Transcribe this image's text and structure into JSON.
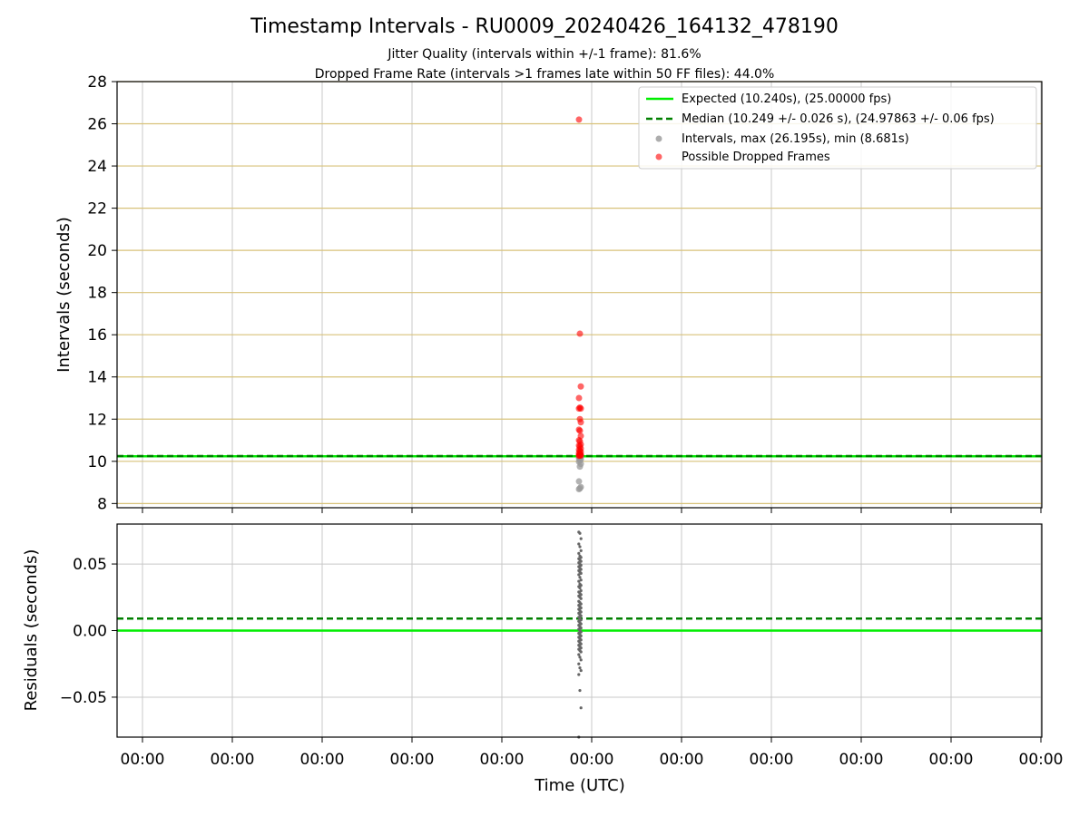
{
  "title": "Timestamp Intervals - RU0009_20240426_164132_478190",
  "subtitle_lines": [
    "Jitter Quality (intervals within +/-1 frame): 81.6%",
    "Dropped Frame Rate (intervals >1 frames late within 50 FF files): 44.0%"
  ],
  "colors": {
    "expected": "#00ee00",
    "median": "#008000",
    "intervals": "#999999",
    "dropped": "#ff0000",
    "residual_points": "#666666",
    "top_hgrid": "#d8c27a",
    "grid": "#c8c8c8"
  },
  "chart_data": [
    {
      "type": "scatter",
      "panel": "intervals",
      "ylabel": "Intervals (seconds)",
      "ylim": [
        7.8,
        28
      ],
      "yticks": [
        "8",
        "10",
        "12",
        "14",
        "16",
        "18",
        "20",
        "22",
        "24",
        "26",
        "28"
      ],
      "grid": true,
      "legend_position": "top-right",
      "reference_lines": [
        {
          "name": "Expected (10.240s), (25.00000 fps)",
          "y": 10.24,
          "style": "solid"
        },
        {
          "name": "Median (10.249 +/- 0.026 s), (24.97863 +/- 0.06 fps)",
          "y": 10.249,
          "style": "dashed"
        }
      ],
      "series": [
        {
          "name": "Intervals, max (26.195s), min (8.681s)",
          "x_offset_px_note": "",
          "values": [
            8.68,
            8.72,
            8.78,
            9.05,
            9.75,
            9.88,
            9.98,
            10.05,
            10.1,
            10.15,
            10.2,
            10.22,
            10.24,
            10.26,
            10.28
          ]
        },
        {
          "name": "Possible Dropped Frames",
          "values": [
            26.2,
            16.05,
            13.55,
            13.0,
            12.55,
            12.5,
            12.5,
            12.0,
            11.85,
            11.5,
            11.45,
            11.2,
            11.0,
            10.95,
            10.8,
            10.75,
            10.7,
            10.6,
            10.55,
            10.5,
            10.45,
            10.4,
            10.35,
            10.32,
            10.3,
            10.28,
            10.27,
            10.26
          ]
        }
      ]
    },
    {
      "type": "scatter",
      "panel": "residuals",
      "ylabel": "Residuals (seconds)",
      "xlabel": "Time (UTC)",
      "ylim": [
        -0.08,
        0.08
      ],
      "yticks": [
        "0.05",
        "0.00",
        "−0.05"
      ],
      "xticks": [
        "00:00",
        "00:00",
        "00:00",
        "00:00",
        "00:00",
        "00:00",
        "00:00",
        "00:00",
        "00:00",
        "00:00",
        "00:00"
      ],
      "grid": true,
      "reference_lines": [
        {
          "y": 0.0,
          "style": "solid"
        },
        {
          "y": 0.009,
          "style": "dashed"
        }
      ],
      "values": [
        0.074,
        0.073,
        0.069,
        0.065,
        0.063,
        0.06,
        0.058,
        0.056,
        0.055,
        0.054,
        0.053,
        0.052,
        0.051,
        0.05,
        0.049,
        0.048,
        0.047,
        0.046,
        0.045,
        0.044,
        0.043,
        0.042,
        0.04,
        0.038,
        0.037,
        0.035,
        0.034,
        0.033,
        0.032,
        0.03,
        0.029,
        0.028,
        0.027,
        0.026,
        0.025,
        0.024,
        0.022,
        0.021,
        0.02,
        0.019,
        0.018,
        0.017,
        0.016,
        0.015,
        0.014,
        0.013,
        0.012,
        0.011,
        0.01,
        0.009,
        0.008,
        0.007,
        0.006,
        0.005,
        0.004,
        0.003,
        0.002,
        0.001,
        0.0,
        -0.001,
        -0.002,
        -0.003,
        -0.004,
        -0.005,
        -0.006,
        -0.007,
        -0.008,
        -0.009,
        -0.01,
        -0.011,
        -0.012,
        -0.013,
        -0.014,
        -0.015,
        -0.016,
        -0.018,
        -0.02,
        -0.022,
        -0.025,
        -0.028,
        -0.03,
        -0.033,
        -0.045,
        -0.058,
        -0.08
      ]
    }
  ]
}
